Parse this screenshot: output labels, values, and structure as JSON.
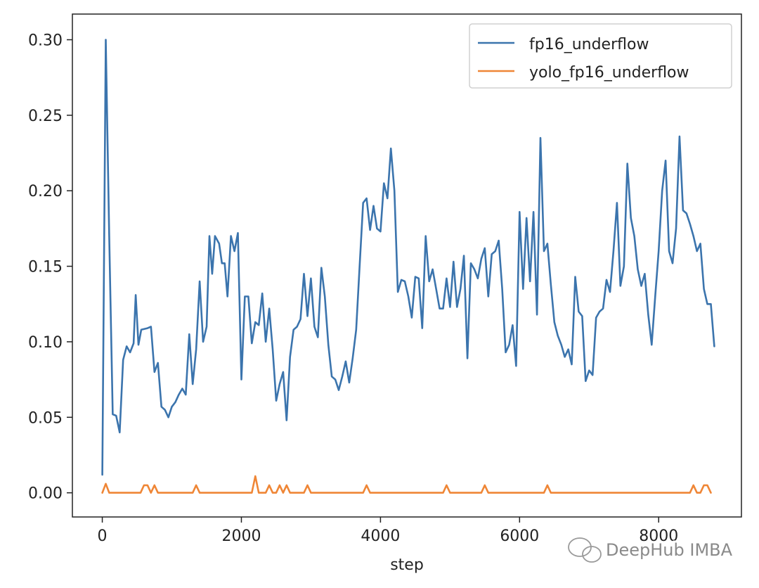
{
  "chart_data": {
    "type": "line",
    "title": "",
    "xlabel": "step",
    "ylabel": "",
    "xlim": [
      -430,
      9190
    ],
    "ylim": [
      -0.016,
      0.317
    ],
    "x_ticks": [
      0,
      2000,
      4000,
      6000,
      8000
    ],
    "y_ticks": [
      0.0,
      0.05,
      0.1,
      0.15,
      0.2,
      0.25,
      0.3
    ],
    "x_tick_labels": [
      "0",
      "2000",
      "4000",
      "6000",
      "8000"
    ],
    "y_tick_labels": [
      "0.00",
      "0.05",
      "0.10",
      "0.15",
      "0.20",
      "0.25",
      "0.30"
    ],
    "grid": false,
    "legend": "top-right",
    "series": [
      {
        "name": "fp16_underflow",
        "color": "#3b74ad",
        "points": [
          [
            0,
            0.012
          ],
          [
            50,
            0.3
          ],
          [
            100,
            0.17
          ],
          [
            150,
            0.052
          ],
          [
            200,
            0.051
          ],
          [
            250,
            0.04
          ],
          [
            300,
            0.088
          ],
          [
            350,
            0.097
          ],
          [
            400,
            0.093
          ],
          [
            450,
            0.099
          ],
          [
            480,
            0.131
          ],
          [
            520,
            0.098
          ],
          [
            560,
            0.108
          ],
          [
            650,
            0.109
          ],
          [
            700,
            0.11
          ],
          [
            750,
            0.08
          ],
          [
            800,
            0.086
          ],
          [
            850,
            0.057
          ],
          [
            900,
            0.055
          ],
          [
            950,
            0.05
          ],
          [
            1000,
            0.057
          ],
          [
            1050,
            0.06
          ],
          [
            1100,
            0.065
          ],
          [
            1150,
            0.069
          ],
          [
            1200,
            0.065
          ],
          [
            1250,
            0.105
          ],
          [
            1300,
            0.072
          ],
          [
            1350,
            0.095
          ],
          [
            1400,
            0.14
          ],
          [
            1450,
            0.1
          ],
          [
            1500,
            0.11
          ],
          [
            1540,
            0.17
          ],
          [
            1580,
            0.145
          ],
          [
            1620,
            0.17
          ],
          [
            1680,
            0.165
          ],
          [
            1720,
            0.152
          ],
          [
            1760,
            0.152
          ],
          [
            1800,
            0.13
          ],
          [
            1850,
            0.17
          ],
          [
            1900,
            0.16
          ],
          [
            1950,
            0.172
          ],
          [
            2000,
            0.075
          ],
          [
            2050,
            0.13
          ],
          [
            2100,
            0.13
          ],
          [
            2150,
            0.099
          ],
          [
            2200,
            0.113
          ],
          [
            2250,
            0.111
          ],
          [
            2300,
            0.132
          ],
          [
            2350,
            0.1
          ],
          [
            2400,
            0.122
          ],
          [
            2450,
            0.095
          ],
          [
            2500,
            0.061
          ],
          [
            2550,
            0.072
          ],
          [
            2600,
            0.08
          ],
          [
            2650,
            0.048
          ],
          [
            2700,
            0.09
          ],
          [
            2750,
            0.108
          ],
          [
            2800,
            0.11
          ],
          [
            2850,
            0.115
          ],
          [
            2900,
            0.145
          ],
          [
            2950,
            0.117
          ],
          [
            3000,
            0.142
          ],
          [
            3050,
            0.11
          ],
          [
            3100,
            0.103
          ],
          [
            3150,
            0.149
          ],
          [
            3200,
            0.13
          ],
          [
            3250,
            0.098
          ],
          [
            3300,
            0.077
          ],
          [
            3350,
            0.075
          ],
          [
            3400,
            0.068
          ],
          [
            3450,
            0.077
          ],
          [
            3500,
            0.087
          ],
          [
            3550,
            0.073
          ],
          [
            3600,
            0.089
          ],
          [
            3650,
            0.108
          ],
          [
            3700,
            0.15
          ],
          [
            3750,
            0.192
          ],
          [
            3800,
            0.195
          ],
          [
            3850,
            0.174
          ],
          [
            3900,
            0.19
          ],
          [
            3950,
            0.175
          ],
          [
            4000,
            0.173
          ],
          [
            4050,
            0.205
          ],
          [
            4100,
            0.195
          ],
          [
            4150,
            0.228
          ],
          [
            4200,
            0.2
          ],
          [
            4250,
            0.133
          ],
          [
            4300,
            0.141
          ],
          [
            4350,
            0.14
          ],
          [
            4400,
            0.13
          ],
          [
            4450,
            0.116
          ],
          [
            4500,
            0.143
          ],
          [
            4550,
            0.142
          ],
          [
            4600,
            0.109
          ],
          [
            4650,
            0.17
          ],
          [
            4700,
            0.14
          ],
          [
            4750,
            0.148
          ],
          [
            4800,
            0.135
          ],
          [
            4850,
            0.122
          ],
          [
            4900,
            0.122
          ],
          [
            4950,
            0.142
          ],
          [
            5000,
            0.123
          ],
          [
            5050,
            0.153
          ],
          [
            5100,
            0.123
          ],
          [
            5150,
            0.135
          ],
          [
            5200,
            0.157
          ],
          [
            5250,
            0.089
          ],
          [
            5300,
            0.152
          ],
          [
            5350,
            0.148
          ],
          [
            5400,
            0.142
          ],
          [
            5450,
            0.155
          ],
          [
            5500,
            0.162
          ],
          [
            5550,
            0.13
          ],
          [
            5600,
            0.158
          ],
          [
            5650,
            0.16
          ],
          [
            5700,
            0.167
          ],
          [
            5750,
            0.135
          ],
          [
            5800,
            0.093
          ],
          [
            5850,
            0.098
          ],
          [
            5900,
            0.111
          ],
          [
            5950,
            0.084
          ],
          [
            6000,
            0.186
          ],
          [
            6050,
            0.135
          ],
          [
            6100,
            0.182
          ],
          [
            6150,
            0.14
          ],
          [
            6200,
            0.186
          ],
          [
            6250,
            0.118
          ],
          [
            6300,
            0.235
          ],
          [
            6350,
            0.16
          ],
          [
            6400,
            0.165
          ],
          [
            6450,
            0.138
          ],
          [
            6500,
            0.113
          ],
          [
            6550,
            0.104
          ],
          [
            6600,
            0.098
          ],
          [
            6650,
            0.09
          ],
          [
            6700,
            0.095
          ],
          [
            6750,
            0.085
          ],
          [
            6800,
            0.143
          ],
          [
            6850,
            0.12
          ],
          [
            6900,
            0.117
          ],
          [
            6950,
            0.074
          ],
          [
            7000,
            0.081
          ],
          [
            7050,
            0.078
          ],
          [
            7100,
            0.116
          ],
          [
            7150,
            0.12
          ],
          [
            7200,
            0.122
          ],
          [
            7250,
            0.141
          ],
          [
            7300,
            0.133
          ],
          [
            7350,
            0.16
          ],
          [
            7400,
            0.192
          ],
          [
            7450,
            0.137
          ],
          [
            7500,
            0.15
          ],
          [
            7550,
            0.218
          ],
          [
            7600,
            0.182
          ],
          [
            7650,
            0.17
          ],
          [
            7700,
            0.148
          ],
          [
            7750,
            0.137
          ],
          [
            7800,
            0.145
          ],
          [
            7850,
            0.118
          ],
          [
            7900,
            0.098
          ],
          [
            7950,
            0.13
          ],
          [
            8000,
            0.16
          ],
          [
            8050,
            0.2
          ],
          [
            8100,
            0.22
          ],
          [
            8150,
            0.16
          ],
          [
            8200,
            0.152
          ],
          [
            8250,
            0.175
          ],
          [
            8300,
            0.236
          ],
          [
            8350,
            0.187
          ],
          [
            8400,
            0.185
          ],
          [
            8450,
            0.178
          ],
          [
            8500,
            0.17
          ],
          [
            8550,
            0.16
          ],
          [
            8600,
            0.165
          ],
          [
            8650,
            0.135
          ],
          [
            8700,
            0.125
          ],
          [
            8750,
            0.125
          ],
          [
            8800,
            0.097
          ]
        ]
      },
      {
        "name": "yolo_fp16_underflow",
        "color": "#ef8636",
        "points": [
          [
            0,
            0.0
          ],
          [
            50,
            0.006
          ],
          [
            100,
            0.0
          ],
          [
            550,
            0.0
          ],
          [
            600,
            0.005
          ],
          [
            650,
            0.005
          ],
          [
            700,
            0.0
          ],
          [
            750,
            0.005
          ],
          [
            800,
            0.0
          ],
          [
            1300,
            0.0
          ],
          [
            1350,
            0.005
          ],
          [
            1400,
            0.0
          ],
          [
            2150,
            0.0
          ],
          [
            2200,
            0.011
          ],
          [
            2250,
            0.0
          ],
          [
            2350,
            0.0
          ],
          [
            2400,
            0.005
          ],
          [
            2450,
            0.0
          ],
          [
            2500,
            0.0
          ],
          [
            2550,
            0.005
          ],
          [
            2600,
            0.0
          ],
          [
            2650,
            0.005
          ],
          [
            2700,
            0.0
          ],
          [
            2900,
            0.0
          ],
          [
            2950,
            0.005
          ],
          [
            3000,
            0.0
          ],
          [
            3750,
            0.0
          ],
          [
            3800,
            0.005
          ],
          [
            3850,
            0.0
          ],
          [
            4900,
            0.0
          ],
          [
            4950,
            0.005
          ],
          [
            5000,
            0.0
          ],
          [
            5450,
            0.0
          ],
          [
            5500,
            0.005
          ],
          [
            5550,
            0.0
          ],
          [
            6350,
            0.0
          ],
          [
            6400,
            0.005
          ],
          [
            6450,
            0.0
          ],
          [
            8450,
            0.0
          ],
          [
            8500,
            0.005
          ],
          [
            8550,
            0.0
          ],
          [
            8600,
            0.0
          ],
          [
            8650,
            0.005
          ],
          [
            8700,
            0.005
          ],
          [
            8750,
            0.0
          ]
        ]
      }
    ]
  },
  "watermark": {
    "text": "DeepHub IMBA",
    "icon": "wechat-icon"
  }
}
